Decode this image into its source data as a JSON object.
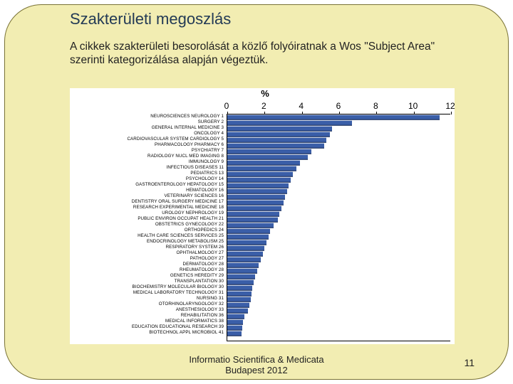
{
  "title": "Szakterületi megoszlás",
  "subtitle": "A cikkek szakterületi besorolását a közlő folyóiratnak a Wos \"Subject Area\" szerinti kategorizálása alapján végeztük.",
  "footer_line1": "Informatio Scientifica & Medicata",
  "footer_line2": "Budapest 2012",
  "page_number": "11",
  "chart": {
    "type": "bar-horizontal",
    "axis_title": "%",
    "xlim": [
      0,
      12
    ],
    "ticks": [
      0,
      2,
      4,
      6,
      8,
      10,
      12
    ],
    "bar_color": "#3a5ea8",
    "background_color": "#ffffff",
    "slide_bg": "#f2edb2",
    "categories": [
      {
        "label": "NEUROSCIENCES NEUROLOGY 1",
        "value": 11.4
      },
      {
        "label": "SURGERY 2",
        "value": 6.7
      },
      {
        "label": "GENERAL INTERNAL MEDICINE 3",
        "value": 5.6
      },
      {
        "label": "ONCOLOGY 4",
        "value": 5.5
      },
      {
        "label": "CARDIOVASCULAR SYSTEM CARDIOLOGY 5",
        "value": 5.3
      },
      {
        "label": "PHARMACOLOGY PHARMACY 6",
        "value": 5.2
      },
      {
        "label": "PSYCHIATRY 7",
        "value": 4.5
      },
      {
        "label": "RADIOLOGY NUCL MED IMAGING 8",
        "value": 4.3
      },
      {
        "label": "IMMUNOLOGY 9",
        "value": 3.9
      },
      {
        "label": "INFECTIOUS DISEASES 11",
        "value": 3.7
      },
      {
        "label": "PEDIATRICS 13",
        "value": 3.5
      },
      {
        "label": "PSYCHOLOGY 14",
        "value": 3.4
      },
      {
        "label": "GASTROENTEROLOGY HEPATOLOGY 15",
        "value": 3.3
      },
      {
        "label": "HEMATOLOGY 16",
        "value": 3.2
      },
      {
        "label": "VETERINARY SCIENCES 16",
        "value": 3.1
      },
      {
        "label": "DENTISTRY ORAL SURGERY MEDICINE 17",
        "value": 3.0
      },
      {
        "label": "RESEARCH EXPERIMENTAL MEDICINE 18",
        "value": 2.9
      },
      {
        "label": "UROLOGY NEPHROLOGY 19",
        "value": 2.8
      },
      {
        "label": "PUBLIC ENVIRON OCCUPAT HEALTH 21",
        "value": 2.7
      },
      {
        "label": "OBSTETRICS GYNECOLOGY 22",
        "value": 2.5
      },
      {
        "label": "ORTHOPEDICS 24",
        "value": 2.3
      },
      {
        "label": "HEALTH CARE SCIENCES SERVICES 25",
        "value": 2.2
      },
      {
        "label": "ENDOCRINOLOGY METABOLISM 25",
        "value": 2.1
      },
      {
        "label": "RESPIRATORY SYSTEM 26",
        "value": 2.0
      },
      {
        "label": "OPHTHALMOLOGY 27",
        "value": 1.9
      },
      {
        "label": "PATHOLOGY 27",
        "value": 1.8
      },
      {
        "label": "DERMATOLOGY 28",
        "value": 1.7
      },
      {
        "label": "RHEUMATOLOGY 28",
        "value": 1.6
      },
      {
        "label": "GENETICS HEREDITY 29",
        "value": 1.5
      },
      {
        "label": "TRANSPLANTATION 30",
        "value": 1.4
      },
      {
        "label": "BIOCHEMISTRY MOLECULAR BIOLOGY 30",
        "value": 1.35
      },
      {
        "label": "MEDICAL LABORATORY TECHNOLOGY 31",
        "value": 1.3
      },
      {
        "label": "NURSING 31",
        "value": 1.25
      },
      {
        "label": "OTORHINOLARYNGOLOGY 32",
        "value": 1.2
      },
      {
        "label": "ANESTHESIOLOGY 33",
        "value": 1.1
      },
      {
        "label": "REHABILITATION 36",
        "value": 0.9
      },
      {
        "label": "MEDICAL INFORMATICS 38",
        "value": 0.85
      },
      {
        "label": "EDUCATION EDUCATIONAL RESEARCH 39",
        "value": 0.8
      },
      {
        "label": "BIOTECHNOL APPL MICROBIOL 41",
        "value": 0.75
      }
    ]
  }
}
